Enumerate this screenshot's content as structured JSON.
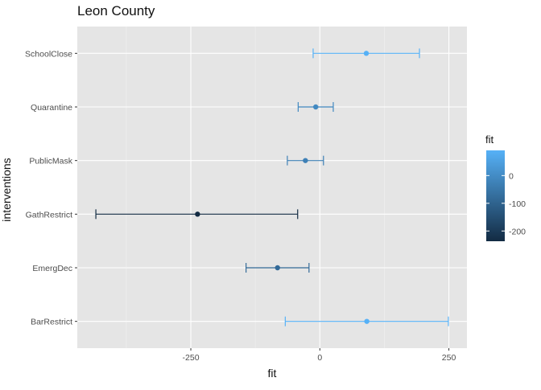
{
  "chart_data": {
    "type": "errorbar",
    "title": "Leon County",
    "xlabel": "fit",
    "ylabel": "interventions",
    "xlim": [
      -470,
      285
    ],
    "x_ticks": [
      -250,
      0,
      250
    ],
    "x_tick_labels": [
      "-250",
      "0",
      "250"
    ],
    "categories": [
      "SchoolClose",
      "Quarantine",
      "PublicMask",
      "GathRestrict",
      "EmergDec",
      "BarRestrict"
    ],
    "points": [
      {
        "category": "SchoolClose",
        "fit": 90,
        "lower": -13,
        "upper": 193
      },
      {
        "category": "Quarantine",
        "fit": -8,
        "lower": -42,
        "upper": 26
      },
      {
        "category": "PublicMask",
        "fit": -28,
        "lower": -63,
        "upper": 7
      },
      {
        "category": "GathRestrict",
        "fit": -237,
        "lower": -434,
        "upper": -43
      },
      {
        "category": "EmergDec",
        "fit": -82,
        "lower": -143,
        "upper": -21
      },
      {
        "category": "BarRestrict",
        "fit": 91,
        "lower": -67,
        "upper": 249
      }
    ],
    "grid": true,
    "background": "#e5e5e5",
    "legend": {
      "title": "fit",
      "position": "right",
      "type": "colorbar",
      "range": [
        -237,
        91
      ],
      "ticks": [
        0,
        -100,
        -200
      ],
      "tick_labels": [
        "0",
        "-100",
        "-200"
      ],
      "color_low": "#132b43",
      "color_high": "#56b1f7"
    }
  }
}
